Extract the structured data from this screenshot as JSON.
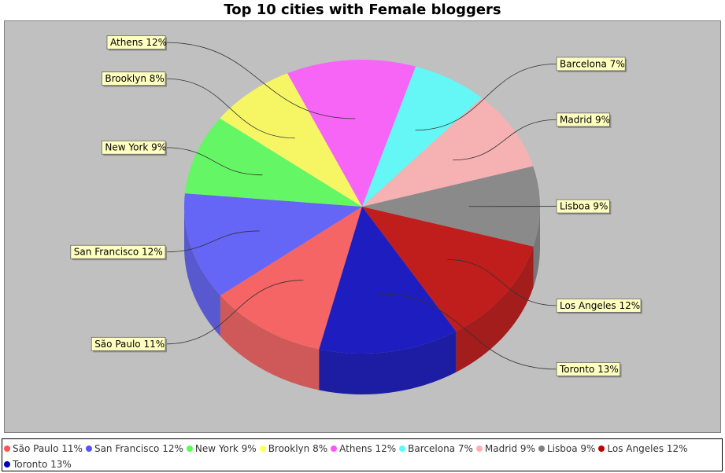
{
  "chart_data": {
    "type": "pie",
    "title": "Top 10 cities with Female bloggers",
    "legend_position": "bottom",
    "slices": [
      {
        "label": "São Paulo 11%",
        "name": "São Paulo",
        "value": 11,
        "color": "#ff5555"
      },
      {
        "label": "San Francisco 12%",
        "name": "San Francisco",
        "value": 12,
        "color": "#5555ff"
      },
      {
        "label": "New York 9%",
        "name": "New York",
        "value": 9,
        "color": "#55ff55"
      },
      {
        "label": "Brooklyn 8%",
        "name": "Brooklyn",
        "value": 8,
        "color": "#ffff55"
      },
      {
        "label": "Athens 12%",
        "name": "Athens",
        "value": 12,
        "color": "#ff55ff"
      },
      {
        "label": "Barcelona 7%",
        "name": "Barcelona",
        "value": 7,
        "color": "#55ffff"
      },
      {
        "label": "Madrid 9%",
        "name": "Madrid",
        "value": 9,
        "color": "#ffafaf"
      },
      {
        "label": "Lisboa 9%",
        "name": "Lisboa",
        "value": 9,
        "color": "#808080"
      },
      {
        "label": "Los Angeles 12%",
        "name": "Los Angeles",
        "value": 12,
        "color": "#c00000"
      },
      {
        "label": "Toronto 13%",
        "name": "Toronto",
        "value": 13,
        "color": "#0000c0"
      }
    ]
  }
}
